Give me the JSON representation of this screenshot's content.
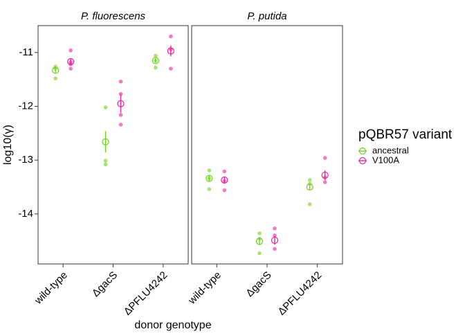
{
  "chart_data": {
    "type": "dot",
    "x_label": "donor genotype",
    "y_label": "log10(γ)",
    "legend_title": "pQBR57 variant",
    "categories": [
      "wild-type",
      "ΔgacS",
      "ΔPFLU4242"
    ],
    "series": [
      {
        "name": "ancestral",
        "color": "#6fcf1f"
      },
      {
        "name": "V100A",
        "color": "#e8239b"
      }
    ],
    "ylim": [
      -14.93,
      -10.5
    ],
    "yticks": [
      -11,
      -12,
      -13,
      -14
    ],
    "panels": [
      {
        "title": "P. fluorescens",
        "values": [
          [
            -11.33,
            -12.66,
            -11.15
          ],
          [
            -11.17,
            -11.95,
            -10.97
          ]
        ],
        "errors": [
          [
            0.05,
            0.2,
            0.04
          ],
          [
            0.06,
            0.17,
            0.1
          ]
        ],
        "points": [
          [
            [
              -11.26,
              -11.3,
              -11.48
            ],
            [
              -12.02,
              -13.01,
              -13.08
            ],
            [
              -11.06,
              -11.15,
              -11.28
            ]
          ],
          [
            [
              -10.96,
              -11.18,
              -11.3,
              -11.22
            ],
            [
              -11.54,
              -11.77,
              -12.16,
              -12.34
            ],
            [
              -10.7,
              -10.94,
              -11.3
            ]
          ]
        ]
      },
      {
        "title": "P. putida",
        "values": [
          [
            -13.34,
            -14.51,
            -13.5
          ],
          [
            -13.37,
            -14.49,
            -13.28
          ]
        ],
        "errors": [
          [
            0.05,
            0.07,
            0.06
          ],
          [
            0.06,
            0.08,
            0.09
          ]
        ],
        "points": [
          [
            [
              -13.19,
              -13.34,
              -13.54
            ],
            [
              -14.36,
              -14.46,
              -14.73
            ],
            [
              -13.37,
              -13.44,
              -13.82
            ]
          ],
          [
            [
              -13.21,
              -13.39,
              -13.56
            ],
            [
              -14.27,
              -14.4,
              -14.65
            ],
            [
              -12.96,
              -13.32,
              -13.41
            ]
          ]
        ]
      }
    ]
  }
}
